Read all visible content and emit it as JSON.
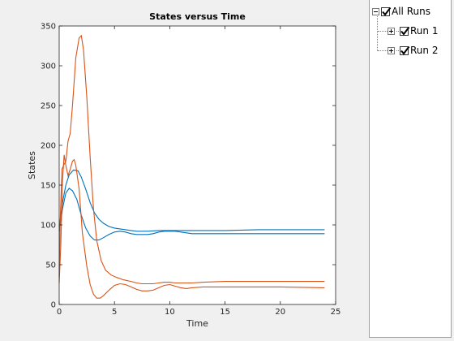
{
  "chart_data": {
    "type": "line",
    "title": "States versus Time",
    "xlabel": "Time",
    "ylabel": "States",
    "xlim": [
      0,
      25
    ],
    "ylim": [
      0,
      350
    ],
    "xticks": [
      0,
      5,
      10,
      15,
      20,
      25
    ],
    "yticks": [
      0,
      50,
      100,
      150,
      200,
      250,
      300,
      350
    ],
    "grid": false,
    "series": [
      {
        "color": "#0072bd",
        "points": [
          [
            0,
            92
          ],
          [
            0.3,
            120
          ],
          [
            0.6,
            140
          ],
          [
            0.9,
            146
          ],
          [
            1.2,
            143
          ],
          [
            1.6,
            132
          ],
          [
            2.0,
            112
          ],
          [
            2.4,
            96
          ],
          [
            2.8,
            86
          ],
          [
            3.2,
            81
          ],
          [
            3.6,
            81
          ],
          [
            4.0,
            84
          ],
          [
            4.5,
            88
          ],
          [
            5.0,
            91
          ],
          [
            5.5,
            92
          ],
          [
            6.0,
            91
          ],
          [
            6.5,
            89
          ],
          [
            7.0,
            88
          ],
          [
            7.5,
            88
          ],
          [
            8.0,
            88
          ],
          [
            8.5,
            89
          ],
          [
            9.0,
            91
          ],
          [
            9.5,
            92
          ],
          [
            10,
            92
          ],
          [
            10.5,
            92
          ],
          [
            11,
            91
          ],
          [
            12,
            89
          ],
          [
            13,
            89
          ],
          [
            15,
            89
          ],
          [
            18,
            89
          ],
          [
            20,
            89
          ],
          [
            24,
            89
          ]
        ]
      },
      {
        "color": "#0072bd",
        "points": [
          [
            0,
            97
          ],
          [
            0.3,
            128
          ],
          [
            0.6,
            150
          ],
          [
            0.9,
            163
          ],
          [
            1.3,
            169
          ],
          [
            1.7,
            168
          ],
          [
            2.0,
            160
          ],
          [
            2.4,
            145
          ],
          [
            2.8,
            128
          ],
          [
            3.2,
            115
          ],
          [
            3.6,
            107
          ],
          [
            4.0,
            102
          ],
          [
            4.5,
            98
          ],
          [
            5.0,
            96
          ],
          [
            5.5,
            95
          ],
          [
            6.0,
            94
          ],
          [
            6.5,
            93
          ],
          [
            7.0,
            92
          ],
          [
            8.0,
            92
          ],
          [
            9.0,
            93
          ],
          [
            10,
            93
          ],
          [
            11,
            93
          ],
          [
            12,
            93
          ],
          [
            15,
            93
          ],
          [
            18,
            94
          ],
          [
            20,
            94
          ],
          [
            24,
            94
          ]
        ]
      },
      {
        "color": "#d95319",
        "points": [
          [
            0,
            27
          ],
          [
            0.15,
            75
          ],
          [
            0.3,
            155
          ],
          [
            0.45,
            188
          ],
          [
            0.6,
            175
          ],
          [
            0.8,
            162
          ],
          [
            1.0,
            170
          ],
          [
            1.2,
            180
          ],
          [
            1.35,
            182
          ],
          [
            1.5,
            175
          ],
          [
            1.8,
            145
          ],
          [
            2.1,
            90
          ],
          [
            2.5,
            48
          ],
          [
            2.8,
            25
          ],
          [
            3.1,
            13
          ],
          [
            3.4,
            8
          ],
          [
            3.7,
            8
          ],
          [
            4.0,
            11
          ],
          [
            4.5,
            18
          ],
          [
            5.0,
            24
          ],
          [
            5.5,
            26
          ],
          [
            6.0,
            25
          ],
          [
            6.5,
            22
          ],
          [
            7.0,
            19
          ],
          [
            7.5,
            17
          ],
          [
            8.0,
            17
          ],
          [
            8.5,
            18
          ],
          [
            9.0,
            21
          ],
          [
            9.5,
            24
          ],
          [
            10,
            25
          ],
          [
            10.5,
            23
          ],
          [
            11,
            21
          ],
          [
            11.5,
            20
          ],
          [
            12,
            21
          ],
          [
            13,
            22
          ],
          [
            15,
            22
          ],
          [
            20,
            22
          ],
          [
            24,
            21
          ]
        ]
      },
      {
        "color": "#d95319",
        "points": [
          [
            0,
            35
          ],
          [
            0.1,
            110
          ],
          [
            0.25,
            170
          ],
          [
            0.4,
            175
          ],
          [
            0.6,
            180
          ],
          [
            0.8,
            205
          ],
          [
            1.0,
            215
          ],
          [
            1.2,
            250
          ],
          [
            1.5,
            310
          ],
          [
            1.8,
            335
          ],
          [
            2.0,
            338
          ],
          [
            2.2,
            320
          ],
          [
            2.5,
            260
          ],
          [
            2.8,
            185
          ],
          [
            3.1,
            120
          ],
          [
            3.4,
            80
          ],
          [
            3.8,
            55
          ],
          [
            4.2,
            43
          ],
          [
            4.7,
            37
          ],
          [
            5.2,
            34
          ],
          [
            5.8,
            31
          ],
          [
            6.5,
            29
          ],
          [
            7.0,
            27
          ],
          [
            7.5,
            26
          ],
          [
            8.0,
            26
          ],
          [
            8.5,
            26
          ],
          [
            9.0,
            27
          ],
          [
            9.5,
            28
          ],
          [
            10,
            28
          ],
          [
            10.5,
            27
          ],
          [
            11,
            27
          ],
          [
            12,
            27
          ],
          [
            13,
            28
          ],
          [
            15,
            29
          ],
          [
            18,
            29
          ],
          [
            20,
            29
          ],
          [
            24,
            29
          ]
        ]
      }
    ]
  },
  "tree": {
    "root": {
      "label": "All Runs",
      "expanded": true,
      "checked": true
    },
    "children": [
      {
        "label": "Run 1",
        "expanded": false,
        "checked": true
      },
      {
        "label": "Run 2",
        "expanded": false,
        "checked": true
      }
    ]
  }
}
